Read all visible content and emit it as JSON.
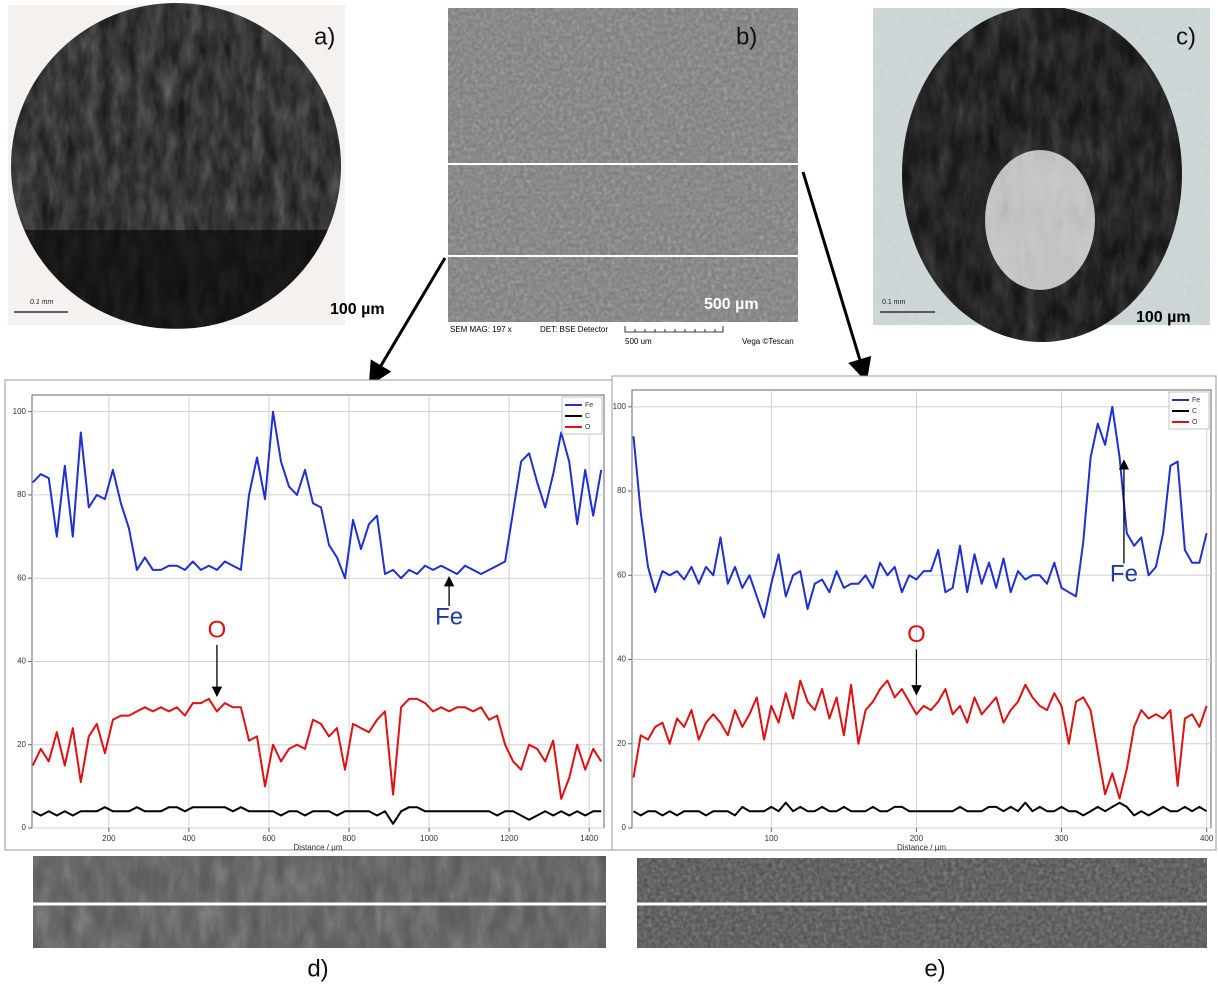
{
  "panels": {
    "a": {
      "label": "a)",
      "scale": "100 µm",
      "scale_small": "0.1 mm"
    },
    "b": {
      "label": "b)",
      "scale": "500 µm",
      "footer": [
        "SEM MAG: 197 x",
        "DET: BSE Detector",
        "500 um",
        "Vega ©Tescan"
      ]
    },
    "c": {
      "label": "c)",
      "scale": "100 µm",
      "scale_small": "0.1 mm"
    }
  },
  "chart_data": [
    {
      "type": "line",
      "panel_label": "d)",
      "x_label": "Distance / µm",
      "grid": true,
      "legend": "top-right",
      "xlim": [
        8,
        1437
      ],
      "xticks": [
        200,
        400,
        600,
        800,
        1000,
        1200,
        1400
      ],
      "ylim": [
        0,
        104
      ],
      "yticks": [
        0,
        20,
        40,
        60,
        80,
        100
      ],
      "x": [
        10,
        30,
        50,
        70,
        90,
        110,
        130,
        150,
        170,
        190,
        210,
        230,
        250,
        270,
        290,
        310,
        330,
        350,
        370,
        390,
        410,
        430,
        450,
        470,
        490,
        510,
        530,
        550,
        570,
        590,
        610,
        630,
        650,
        670,
        690,
        710,
        730,
        750,
        770,
        790,
        810,
        830,
        850,
        870,
        890,
        910,
        930,
        950,
        970,
        990,
        1010,
        1030,
        1050,
        1070,
        1090,
        1110,
        1130,
        1150,
        1170,
        1190,
        1210,
        1230,
        1250,
        1270,
        1290,
        1310,
        1330,
        1350,
        1370,
        1390,
        1410,
        1430
      ],
      "series": [
        {
          "name": "Fe",
          "color": "#1f2fd0",
          "values": [
            83,
            85,
            84,
            70,
            87,
            70,
            95,
            77,
            80,
            79,
            86,
            78,
            72,
            62,
            65,
            62,
            62,
            63,
            63,
            62,
            64,
            62,
            63,
            62,
            64,
            63,
            62,
            80,
            89,
            79,
            100,
            88,
            82,
            80,
            86,
            78,
            77,
            68,
            65,
            60,
            74,
            67,
            73,
            75,
            61,
            62,
            60,
            62,
            61,
            63,
            62,
            63,
            62,
            61,
            63,
            62,
            61,
            62,
            63,
            64,
            76,
            88,
            90,
            83,
            77,
            85,
            95,
            88,
            73,
            86,
            75,
            86
          ]
        },
        {
          "name": "C",
          "color": "#000000",
          "values": [
            4,
            3,
            4,
            3,
            4,
            3,
            4,
            4,
            4,
            5,
            4,
            4,
            4,
            5,
            4,
            4,
            4,
            5,
            5,
            4,
            5,
            5,
            5,
            5,
            5,
            4,
            5,
            4,
            4,
            4,
            4,
            3,
            4,
            4,
            3,
            4,
            4,
            4,
            3,
            4,
            4,
            4,
            4,
            3,
            4,
            1,
            4,
            5,
            5,
            4,
            4,
            4,
            4,
            4,
            4,
            4,
            4,
            4,
            3,
            4,
            4,
            3,
            2,
            3,
            4,
            3,
            4,
            3,
            4,
            3,
            4,
            4
          ]
        },
        {
          "name": "O",
          "color": "#e01010",
          "values": [
            15,
            19,
            16,
            23,
            15,
            24,
            11,
            22,
            25,
            18,
            26,
            27,
            27,
            28,
            29,
            28,
            29,
            28,
            29,
            27,
            30,
            30,
            31,
            28,
            30,
            29,
            29,
            21,
            22,
            10,
            20,
            16,
            19,
            20,
            19,
            26,
            25,
            22,
            24,
            14,
            25,
            24,
            23,
            26,
            28,
            8,
            29,
            31,
            31,
            30,
            28,
            29,
            28,
            29,
            29,
            28,
            29,
            26,
            27,
            20,
            16,
            14,
            20,
            19,
            16,
            21,
            7,
            12,
            20,
            14,
            19,
            16
          ]
        }
      ],
      "annotations": [
        {
          "text": "Fe",
          "x": 1050,
          "y": 61,
          "color": "#1f3aa0"
        },
        {
          "text": "O",
          "x": 470,
          "y": 31,
          "color": "#e01010"
        }
      ]
    },
    {
      "type": "line",
      "panel_label": "e)",
      "x_label": "Distance / µm",
      "grid": true,
      "legend": "top-right",
      "xlim": [
        4,
        403
      ],
      "xticks": [
        100,
        200,
        300,
        400
      ],
      "ylim": [
        0,
        104
      ],
      "yticks": [
        0,
        20,
        40,
        60,
        80,
        100
      ],
      "x": [
        5,
        10,
        15,
        20,
        25,
        30,
        35,
        40,
        45,
        50,
        55,
        60,
        65,
        70,
        75,
        80,
        85,
        90,
        95,
        100,
        105,
        110,
        115,
        120,
        125,
        130,
        135,
        140,
        145,
        150,
        155,
        160,
        165,
        170,
        175,
        180,
        185,
        190,
        195,
        200,
        205,
        210,
        215,
        220,
        225,
        230,
        235,
        240,
        245,
        250,
        255,
        260,
        265,
        270,
        275,
        280,
        285,
        290,
        295,
        300,
        305,
        310,
        315,
        320,
        325,
        330,
        335,
        340,
        345,
        350,
        355,
        360,
        365,
        370,
        375,
        380,
        385,
        390,
        395,
        400
      ],
      "series": [
        {
          "name": "Fe",
          "color": "#1f2fd0",
          "values": [
            93,
            75,
            62,
            56,
            61,
            60,
            61,
            59,
            62,
            58,
            62,
            60,
            69,
            58,
            62,
            57,
            60,
            55,
            50,
            58,
            65,
            55,
            60,
            61,
            52,
            58,
            59,
            56,
            61,
            57,
            58,
            58,
            60,
            57,
            63,
            60,
            62,
            56,
            60,
            59,
            61,
            61,
            66,
            56,
            57,
            67,
            56,
            65,
            58,
            63,
            57,
            64,
            56,
            61,
            59,
            60,
            60,
            58,
            63,
            57,
            56,
            55,
            68,
            88,
            96,
            91,
            100,
            88,
            70,
            67,
            69,
            60,
            62,
            70,
            86,
            87,
            66,
            63,
            63,
            70
          ]
        },
        {
          "name": "C",
          "color": "#000000",
          "values": [
            4,
            3,
            4,
            4,
            3,
            4,
            3,
            4,
            4,
            4,
            3,
            4,
            4,
            4,
            3,
            5,
            4,
            4,
            4,
            5,
            4,
            6,
            4,
            5,
            4,
            4,
            5,
            4,
            4,
            5,
            4,
            4,
            4,
            5,
            4,
            4,
            5,
            5,
            4,
            4,
            4,
            4,
            4,
            4,
            4,
            5,
            4,
            4,
            4,
            5,
            5,
            4,
            5,
            4,
            6,
            4,
            5,
            4,
            4,
            5,
            4,
            4,
            3,
            4,
            5,
            4,
            5,
            6,
            5,
            3,
            4,
            3,
            4,
            5,
            4,
            4,
            5,
            4,
            5,
            4
          ]
        },
        {
          "name": "O",
          "color": "#e01010",
          "values": [
            12,
            22,
            21,
            24,
            25,
            20,
            26,
            24,
            28,
            21,
            25,
            27,
            25,
            22,
            28,
            24,
            27,
            31,
            21,
            29,
            25,
            32,
            26,
            35,
            30,
            28,
            33,
            26,
            31,
            22,
            34,
            20,
            28,
            30,
            33,
            35,
            31,
            33,
            30,
            27,
            29,
            28,
            30,
            33,
            27,
            29,
            25,
            31,
            27,
            29,
            31,
            25,
            28,
            30,
            34,
            31,
            29,
            28,
            32,
            29,
            20,
            30,
            31,
            28,
            18,
            8,
            13,
            7,
            14,
            24,
            28,
            26,
            27,
            26,
            28,
            10,
            26,
            27,
            24,
            29
          ]
        }
      ],
      "annotations": [
        {
          "text": "Fe",
          "x": 343,
          "y": 88,
          "color": "#1f3aa0"
        },
        {
          "text": "O",
          "x": 200,
          "y": 31,
          "color": "#e01010"
        }
      ]
    }
  ]
}
